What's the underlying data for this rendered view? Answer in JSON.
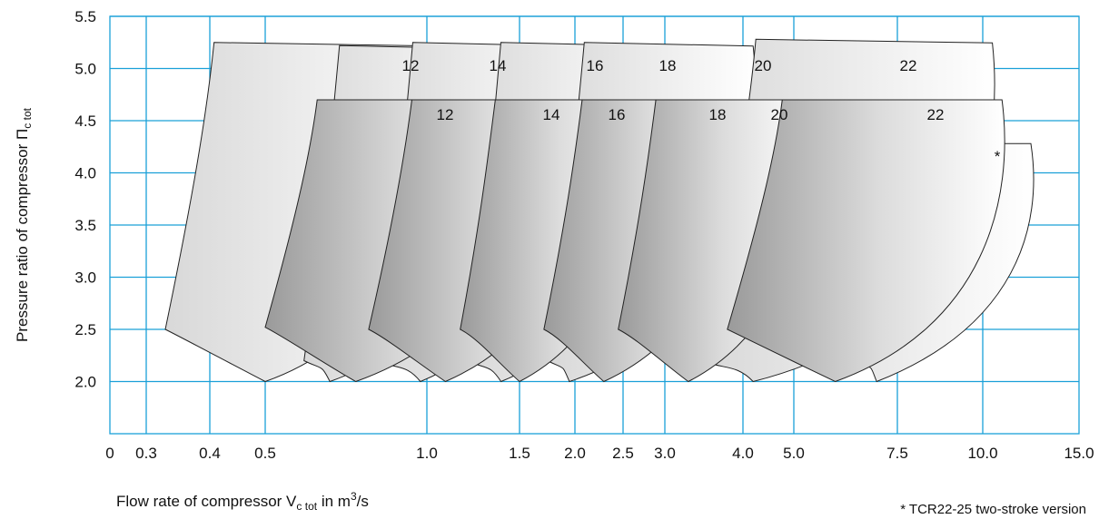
{
  "chart_data": {
    "type": "area",
    "title": "",
    "xlabel": {
      "text": "Flow rate of compressor V",
      "sub": "c tot",
      "unit_prefix": " in m",
      "sup": "3",
      "unit_suffix": "/s"
    },
    "ylabel": {
      "text": "Pressure ratio of compressor Π",
      "sub": "c tot"
    },
    "x_ticks": [
      "0",
      "0.3",
      "0.4",
      "0.5",
      "1.0",
      "1.5",
      "2.0",
      "2.5",
      "3.0",
      "4.0",
      "5.0",
      "7.5",
      "10.0",
      "15.0"
    ],
    "y_ticks": [
      "2.0",
      "2.5",
      "3.0",
      "3.5",
      "4.0",
      "4.5",
      "5.0",
      "5.5"
    ],
    "y_range": [
      1.5,
      5.5
    ],
    "grid": true,
    "footnote": "* TCR22-25 two-stroke version",
    "series": [
      {
        "name": "12",
        "set": "upper",
        "surge_bottom": [
          0.5,
          2.0
        ],
        "surge_top": [
          0.33,
          2.5
        ],
        "top_pressure": 5.25,
        "max_flow": 1.05
      },
      {
        "name": "14",
        "set": "upper",
        "surge_bottom": [
          0.7,
          2.0
        ],
        "surge_top": [
          0.62,
          2.2
        ],
        "top_pressure": 5.22,
        "max_flow": 1.4
      },
      {
        "name": "16",
        "set": "upper",
        "surge_bottom": [
          0.98,
          2.0
        ],
        "surge_top": [
          0.85,
          2.2
        ],
        "top_pressure": 5.25,
        "max_flow": 1.95
      },
      {
        "name": "18",
        "set": "upper",
        "surge_bottom": [
          1.4,
          2.0
        ],
        "surge_top": [
          1.22,
          2.2
        ],
        "top_pressure": 5.25,
        "max_flow": 2.85
      },
      {
        "name": "20",
        "set": "upper",
        "surge_bottom": [
          1.95,
          2.0
        ],
        "surge_top": [
          1.75,
          2.2
        ],
        "top_pressure": 5.25,
        "max_flow": 4.2
      },
      {
        "name": "22",
        "set": "upper",
        "surge_bottom": [
          4.2,
          2.0
        ],
        "surge_top": [
          3.5,
          2.2
        ],
        "top_pressure": 5.28,
        "max_flow": 10.5
      },
      {
        "name": "12",
        "set": "lower",
        "surge_bottom": [
          0.78,
          2.0
        ],
        "surge_top": [
          0.5,
          2.52
        ],
        "top_pressure": 4.7,
        "max_flow": 1.55
      },
      {
        "name": "14",
        "set": "lower",
        "surge_bottom": [
          1.1,
          2.0
        ],
        "surge_top": [
          0.82,
          2.5
        ],
        "top_pressure": 4.7,
        "max_flow": 2.1
      },
      {
        "name": "16",
        "set": "lower",
        "surge_bottom": [
          1.5,
          2.0
        ],
        "surge_top": [
          1.18,
          2.5
        ],
        "top_pressure": 4.7,
        "max_flow": 2.65
      },
      {
        "name": "18",
        "set": "lower",
        "surge_bottom": [
          2.3,
          2.0
        ],
        "surge_top": [
          1.72,
          2.5
        ],
        "top_pressure": 4.7,
        "max_flow": 3.9
      },
      {
        "name": "20",
        "set": "lower",
        "surge_bottom": [
          3.3,
          2.0
        ],
        "surge_top": [
          2.45,
          2.5
        ],
        "top_pressure": 4.7,
        "max_flow": 5.3
      },
      {
        "name": "22",
        "set": "lower",
        "surge_bottom": [
          6.0,
          2.0
        ],
        "surge_top": [
          3.8,
          2.5
        ],
        "top_pressure": 4.7,
        "max_flow": 11.0
      },
      {
        "name": "*",
        "set": "two-stroke",
        "surge_bottom": [
          7.0,
          2.0
        ],
        "surge_top": [
          6.5,
          2.2
        ],
        "top_pressure": 4.28,
        "max_flow": 12.5
      }
    ]
  }
}
